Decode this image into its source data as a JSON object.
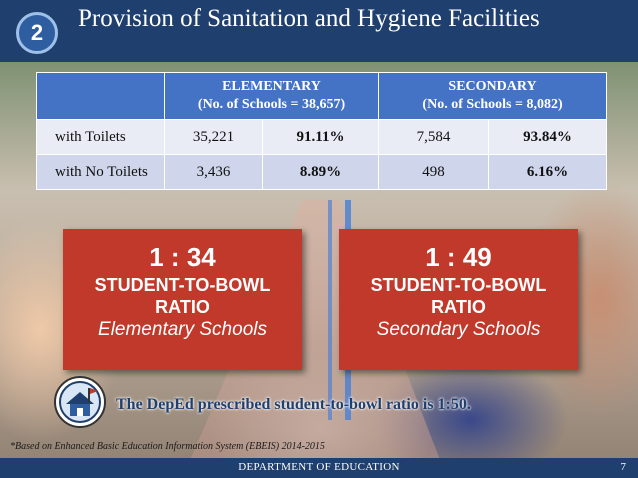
{
  "header": {
    "slide_number": "2",
    "title": "Provision of Sanitation and Hygiene Facilities"
  },
  "table": {
    "columns": [
      {
        "heading": "ELEMENTARY",
        "subheading": "(No. of Schools = 38,657)"
      },
      {
        "heading": "SECONDARY",
        "subheading": "(No. of Schools = 8,082)"
      }
    ],
    "rows": [
      {
        "label": "with Toilets",
        "elem_count": "35,221",
        "elem_pct": "91.11%",
        "sec_count": "7,584",
        "sec_pct": "93.84%"
      },
      {
        "label": "with No Toilets",
        "elem_count": "3,436",
        "elem_pct": "8.89%",
        "sec_count": "498",
        "sec_pct": "6.16%"
      }
    ]
  },
  "ratio_boxes": [
    {
      "value": "1 : 34",
      "label_line1": "STUDENT-TO-BOWL",
      "label_line2": "RATIO",
      "sub": "Elementary Schools"
    },
    {
      "value": "1 : 49",
      "label_line1": "STUDENT-TO-BOWL",
      "label_line2": "RATIO",
      "sub": "Secondary Schools"
    }
  ],
  "prescribed_note": "The DepEd prescribed student-to-bowl ratio is 1:50.",
  "footnote": "*Based on Enhanced Basic Education Information System (EBEIS) 2014-2015",
  "footer": {
    "department": "DEPARTMENT OF EDUCATION",
    "page_number": "7"
  },
  "colors": {
    "header_blue": "#1f3f6e",
    "table_header": "#4472c4",
    "ratio_red": "#c0392b"
  },
  "icons": {
    "logo": "deped-seal-icon"
  }
}
